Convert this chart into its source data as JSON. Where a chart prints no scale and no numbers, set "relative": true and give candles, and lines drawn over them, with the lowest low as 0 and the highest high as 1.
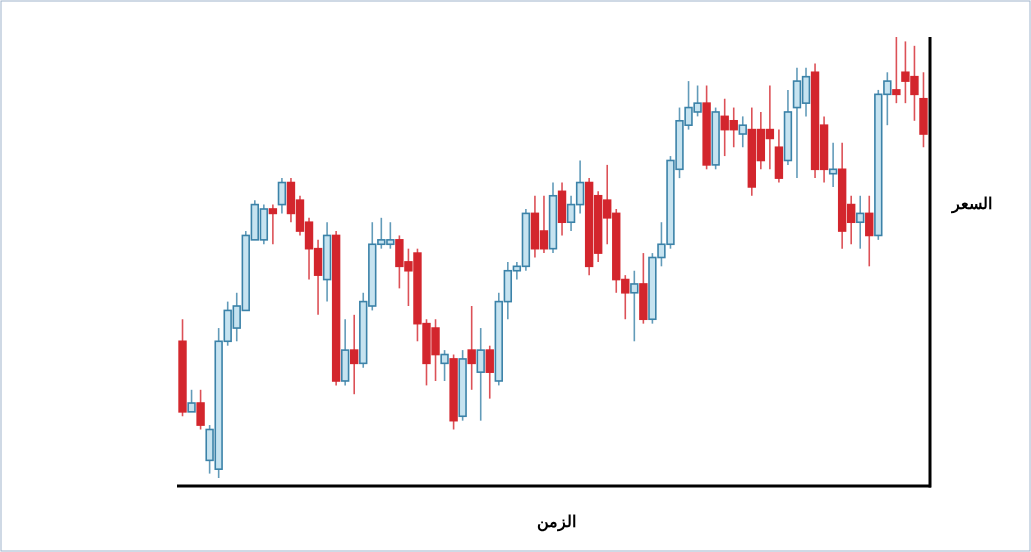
{
  "chart_data": {
    "type": "candlestick",
    "relative": true,
    "xlabel": "الزمن",
    "ylabel": "السعر",
    "categories": [
      null,
      null,
      null,
      null,
      null,
      null,
      null,
      null,
      null,
      null,
      null,
      null,
      null,
      null,
      null,
      null,
      null,
      null,
      null,
      null,
      null,
      null,
      null,
      null,
      null,
      null,
      null,
      null,
      null,
      null,
      null,
      null,
      null,
      null,
      null,
      null,
      null,
      null,
      null,
      null,
      null,
      null,
      null,
      null,
      null,
      null,
      null,
      null,
      null,
      null,
      null,
      null,
      null,
      null,
      null,
      null,
      null,
      null,
      null,
      null,
      null,
      null,
      null,
      null,
      null,
      null,
      null,
      null,
      null,
      null,
      null,
      null,
      null,
      null,
      null,
      null,
      null,
      null,
      null,
      null,
      null,
      null,
      null
    ],
    "ohlc": [
      [
        0.31,
        0.36,
        0.14,
        0.15
      ],
      [
        0.15,
        0.2,
        0.15,
        0.17
      ],
      [
        0.17,
        0.2,
        0.11,
        0.12
      ],
      [
        0.04,
        0.12,
        0.01,
        0.11
      ],
      [
        0.02,
        0.34,
        0,
        0.31
      ],
      [
        0.31,
        0.4,
        0.3,
        0.38
      ],
      [
        0.34,
        0.42,
        0.31,
        0.39
      ],
      [
        0.38,
        0.56,
        0.38,
        0.55
      ],
      [
        0.54,
        0.63,
        0.54,
        0.62
      ],
      [
        0.54,
        0.62,
        0.53,
        0.61
      ],
      [
        0.61,
        0.62,
        0.53,
        0.6
      ],
      [
        0.62,
        0.68,
        0.6,
        0.67
      ],
      [
        0.67,
        0.68,
        0.58,
        0.6
      ],
      [
        0.63,
        0.64,
        0.55,
        0.56
      ],
      [
        0.58,
        0.59,
        0.45,
        0.52
      ],
      [
        0.52,
        0.54,
        0.37,
        0.46
      ],
      [
        0.45,
        0.58,
        0.4,
        0.55
      ],
      [
        0.55,
        0.56,
        0.21,
        0.22
      ],
      [
        0.22,
        0.36,
        0.21,
        0.29
      ],
      [
        0.29,
        0.37,
        0.19,
        0.26
      ],
      [
        0.26,
        0.42,
        0.25,
        0.4
      ],
      [
        0.39,
        0.58,
        0.38,
        0.53
      ],
      [
        0.53,
        0.59,
        0.52,
        0.54
      ],
      [
        0.53,
        0.58,
        0.52,
        0.54
      ],
      [
        0.54,
        0.55,
        0.43,
        0.48
      ],
      [
        0.49,
        0.52,
        0.39,
        0.47
      ],
      [
        0.51,
        0.52,
        0.31,
        0.35
      ],
      [
        0.35,
        0.36,
        0.21,
        0.26
      ],
      [
        0.34,
        0.36,
        0.22,
        0.28
      ],
      [
        0.26,
        0.29,
        0.22,
        0.28
      ],
      [
        0.27,
        0.28,
        0.11,
        0.13
      ],
      [
        0.14,
        0.29,
        0.13,
        0.27
      ],
      [
        0.29,
        0.39,
        0.2,
        0.26
      ],
      [
        0.24,
        0.34,
        0.13,
        0.29
      ],
      [
        0.29,
        0.3,
        0.18,
        0.24
      ],
      [
        0.22,
        0.42,
        0.21,
        0.4
      ],
      [
        0.4,
        0.49,
        0.36,
        0.47
      ],
      [
        0.47,
        0.49,
        0.45,
        0.48
      ],
      [
        0.48,
        0.61,
        0.47,
        0.6
      ],
      [
        0.6,
        0.64,
        0.5,
        0.52
      ],
      [
        0.56,
        0.64,
        0.51,
        0.52
      ],
      [
        0.52,
        0.67,
        0.51,
        0.64
      ],
      [
        0.65,
        0.67,
        0.55,
        0.58
      ],
      [
        0.58,
        0.64,
        0.56,
        0.62
      ],
      [
        0.62,
        0.72,
        0.6,
        0.67
      ],
      [
        0.67,
        0.68,
        0.46,
        0.48
      ],
      [
        0.64,
        0.65,
        0.49,
        0.51
      ],
      [
        0.63,
        0.71,
        0.53,
        0.59
      ],
      [
        0.6,
        0.61,
        0.42,
        0.45
      ],
      [
        0.45,
        0.46,
        0.36,
        0.42
      ],
      [
        0.42,
        0.47,
        0.31,
        0.44
      ],
      [
        0.44,
        0.51,
        0.35,
        0.36
      ],
      [
        0.36,
        0.51,
        0.35,
        0.5
      ],
      [
        0.5,
        0.58,
        0.48,
        0.53
      ],
      [
        0.53,
        0.73,
        0.52,
        0.72
      ],
      [
        0.7,
        0.84,
        0.68,
        0.81
      ],
      [
        0.8,
        0.9,
        0.79,
        0.84
      ],
      [
        0.83,
        0.89,
        0.82,
        0.85
      ],
      [
        0.85,
        0.89,
        0.7,
        0.71
      ],
      [
        0.71,
        0.84,
        0.7,
        0.83
      ],
      [
        0.82,
        0.86,
        0.73,
        0.79
      ],
      [
        0.81,
        0.84,
        0.75,
        0.79
      ],
      [
        0.78,
        0.82,
        0.75,
        0.8
      ],
      [
        0.79,
        0.84,
        0.64,
        0.66
      ],
      [
        0.79,
        0.83,
        0.7,
        0.72
      ],
      [
        0.79,
        0.89,
        0.7,
        0.77
      ],
      [
        0.75,
        0.79,
        0.67,
        0.68
      ],
      [
        0.72,
        0.88,
        0.71,
        0.83
      ],
      [
        0.84,
        0.93,
        0.68,
        0.9
      ],
      [
        0.85,
        0.93,
        0.82,
        0.91
      ],
      [
        0.92,
        0.94,
        0.68,
        0.7
      ],
      [
        0.8,
        0.82,
        0.67,
        0.7
      ],
      [
        0.69,
        0.76,
        0.66,
        0.7
      ],
      [
        0.7,
        0.76,
        0.52,
        0.56
      ],
      [
        0.62,
        0.64,
        0.53,
        0.58
      ],
      [
        0.58,
        0.64,
        0.52,
        0.6
      ],
      [
        0.6,
        0.64,
        0.48,
        0.55
      ],
      [
        0.55,
        0.88,
        0.54,
        0.87
      ],
      [
        0.87,
        0.92,
        0.8,
        0.9
      ],
      [
        0.88,
        1,
        0.85,
        0.87
      ],
      [
        0.92,
        0.99,
        0.85,
        0.9
      ],
      [
        0.91,
        0.98,
        0.81,
        0.87
      ],
      [
        0.86,
        0.92,
        0.75,
        0.78
      ]
    ],
    "colors": [
      "#d3262d",
      "#3b82a8",
      "#d3262d",
      "#3b82a8",
      "#3b82a8",
      "#3b82a8",
      "#3b82a8",
      "#3b82a8",
      "#3b82a8",
      "#3b82a8",
      "#d3262d",
      "#3b82a8",
      "#d3262d",
      "#d3262d",
      "#d3262d",
      "#d3262d",
      "#3b82a8",
      "#d3262d",
      "#3b82a8",
      "#d3262d",
      "#3b82a8",
      "#3b82a8",
      "#3b82a8",
      "#3b82a8",
      "#d3262d",
      "#d3262d",
      "#d3262d",
      "#d3262d",
      "#d3262d",
      "#3b82a8",
      "#d3262d",
      "#3b82a8",
      "#d3262d",
      "#3b82a8",
      "#d3262d",
      "#3b82a8",
      "#3b82a8",
      "#3b82a8",
      "#3b82a8",
      "#d3262d",
      "#d3262d",
      "#3b82a8",
      "#d3262d",
      "#3b82a8",
      "#3b82a8",
      "#d3262d",
      "#d3262d",
      "#d3262d",
      "#d3262d",
      "#d3262d",
      "#3b82a8",
      "#d3262d",
      "#3b82a8",
      "#3b82a8",
      "#3b82a8",
      "#3b82a8",
      "#3b82a8",
      "#3b82a8",
      "#d3262d",
      "#3b82a8",
      "#d3262d",
      "#d3262d",
      "#3b82a8",
      "#d3262d",
      "#d3262d",
      "#d3262d",
      "#d3262d",
      "#3b82a8",
      "#3b82a8",
      "#3b82a8",
      "#d3262d",
      "#d3262d",
      "#3b82a8",
      "#d3262d",
      "#d3262d",
      "#3b82a8",
      "#d3262d",
      "#3b82a8",
      "#3b82a8",
      "#d3262d",
      "#d3262d",
      "#d3262d",
      "#d3262d"
    ]
  }
}
